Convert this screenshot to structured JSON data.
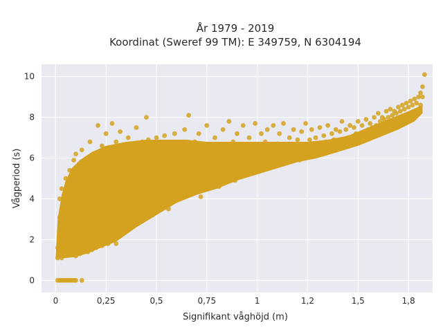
{
  "chart_data": {
    "type": "scatter",
    "title_line1": "År 1979 - 2019",
    "title_line2": "Koordinat (Sweref 99 TM): E 349759, N 6304194",
    "xlabel": "Signifikant våghöjd (m)",
    "ylabel": "Vågperiod (s)",
    "xlim": [
      -0.07,
      1.87
    ],
    "ylim": [
      -0.6,
      10.6
    ],
    "x_ticks": [
      {
        "value": 0,
        "label": "0"
      },
      {
        "value": 0.25,
        "label": "0,25"
      },
      {
        "value": 0.5,
        "label": "0,5"
      },
      {
        "value": 0.75,
        "label": "0,75"
      },
      {
        "value": 1.0,
        "label": "1"
      },
      {
        "value": 1.25,
        "label": "1,2"
      },
      {
        "value": 1.5,
        "label": "1,5"
      },
      {
        "value": 1.75,
        "label": "1,8"
      }
    ],
    "y_ticks": [
      {
        "value": 0,
        "label": "0"
      },
      {
        "value": 2,
        "label": "2"
      },
      {
        "value": 4,
        "label": "4"
      },
      {
        "value": 6,
        "label": "6"
      },
      {
        "value": 8,
        "label": "8"
      },
      {
        "value": 10,
        "label": "10"
      }
    ],
    "grid": true,
    "marker_color": "#d4a21f",
    "plot_bg": "#e9e9f1",
    "series": [
      {
        "points": [
          [
            0.01,
            0
          ],
          [
            0.02,
            0
          ],
          [
            0.03,
            0
          ],
          [
            0.04,
            0
          ],
          [
            0.05,
            0
          ],
          [
            0.06,
            0
          ],
          [
            0.07,
            0
          ],
          [
            0.08,
            0
          ],
          [
            0.09,
            0
          ],
          [
            0.1,
            0
          ],
          [
            0.13,
            0
          ],
          [
            0.01,
            1.1
          ],
          [
            0.01,
            1.6
          ],
          [
            0.02,
            1.3
          ],
          [
            0.02,
            2.2
          ],
          [
            0.02,
            3.1
          ],
          [
            0.03,
            4.5
          ],
          [
            0.02,
            4.0
          ],
          [
            0.03,
            1.1
          ],
          [
            0.04,
            2.6
          ],
          [
            0.04,
            3.6
          ],
          [
            0.05,
            5.0
          ],
          [
            0.05,
            1.2
          ],
          [
            0.06,
            1.8
          ],
          [
            0.06,
            2.9
          ],
          [
            0.06,
            4.1
          ],
          [
            0.07,
            5.4
          ],
          [
            0.08,
            1.3
          ],
          [
            0.08,
            2.1
          ],
          [
            0.08,
            3.3
          ],
          [
            0.09,
            4.6
          ],
          [
            0.09,
            5.9
          ],
          [
            0.1,
            1.2
          ],
          [
            0.1,
            1.9
          ],
          [
            0.1,
            3.0
          ],
          [
            0.1,
            6.2
          ],
          [
            0.11,
            4.2
          ],
          [
            0.11,
            5.2
          ],
          [
            0.12,
            1.3
          ],
          [
            0.12,
            2.5
          ],
          [
            0.12,
            3.8
          ],
          [
            0.13,
            5.6
          ],
          [
            0.13,
            6.4
          ],
          [
            0.14,
            1.4
          ],
          [
            0.14,
            2.2
          ],
          [
            0.14,
            4.6
          ],
          [
            0.15,
            3.2
          ],
          [
            0.15,
            5.9
          ],
          [
            0.16,
            1.4
          ],
          [
            0.16,
            2.8
          ],
          [
            0.16,
            4.0
          ],
          [
            0.17,
            6.8
          ],
          [
            0.17,
            5.1
          ],
          [
            0.18,
            1.5
          ],
          [
            0.18,
            3.4
          ],
          [
            0.19,
            4.4
          ],
          [
            0.19,
            6.1
          ],
          [
            0.2,
            1.6
          ],
          [
            0.2,
            2.6
          ],
          [
            0.21,
            7.6
          ],
          [
            0.21,
            5.4
          ],
          [
            0.22,
            3.0
          ],
          [
            0.22,
            4.0
          ],
          [
            0.23,
            1.7
          ],
          [
            0.23,
            6.6
          ],
          [
            0.24,
            4.8
          ],
          [
            0.24,
            2.4
          ],
          [
            0.25,
            7.2
          ],
          [
            0.25,
            3.6
          ],
          [
            0.26,
            5.6
          ],
          [
            0.26,
            1.8
          ],
          [
            0.27,
            6.2
          ],
          [
            0.27,
            4.2
          ],
          [
            0.28,
            7.7
          ],
          [
            0.28,
            2.6
          ],
          [
            0.29,
            5.0
          ],
          [
            0.29,
            3.2
          ],
          [
            0.3,
            6.8
          ],
          [
            0.3,
            1.8
          ],
          [
            0.31,
            4.4
          ],
          [
            0.32,
            7.3
          ],
          [
            0.32,
            5.9
          ],
          [
            0.33,
            3.4
          ],
          [
            0.34,
            6.4
          ],
          [
            0.34,
            2.6
          ],
          [
            0.35,
            4.6
          ],
          [
            0.36,
            7.0
          ],
          [
            0.36,
            5.4
          ],
          [
            0.37,
            3.8
          ],
          [
            0.38,
            6.0
          ],
          [
            0.38,
            2.9
          ],
          [
            0.39,
            4.9
          ],
          [
            0.4,
            7.5
          ],
          [
            0.4,
            6.4
          ],
          [
            0.41,
            3.6
          ],
          [
            0.42,
            5.2
          ],
          [
            0.43,
            6.8
          ],
          [
            0.43,
            4.2
          ],
          [
            0.44,
            3.3
          ],
          [
            0.45,
            8.0
          ],
          [
            0.45,
            5.6
          ],
          [
            0.46,
            6.9
          ],
          [
            0.47,
            4.6
          ],
          [
            0.48,
            3.2
          ],
          [
            0.48,
            6.2
          ],
          [
            0.49,
            5.0
          ],
          [
            0.5,
            7.0
          ],
          [
            0.5,
            4.0
          ],
          [
            0.51,
            5.8
          ],
          [
            0.52,
            6.6
          ],
          [
            0.53,
            4.5
          ],
          [
            0.54,
            7.1
          ],
          [
            0.55,
            5.2
          ],
          [
            0.56,
            3.5
          ],
          [
            0.57,
            6.2
          ],
          [
            0.58,
            4.8
          ],
          [
            0.59,
            7.2
          ],
          [
            0.6,
            5.6
          ],
          [
            0.61,
            4.2
          ],
          [
            0.62,
            6.6
          ],
          [
            0.63,
            5.1
          ],
          [
            0.64,
            7.4
          ],
          [
            0.65,
            4.8
          ],
          [
            0.66,
            8.1
          ],
          [
            0.67,
            5.9
          ],
          [
            0.68,
            4.4
          ],
          [
            0.69,
            6.8
          ],
          [
            0.7,
            5.4
          ],
          [
            0.71,
            7.2
          ],
          [
            0.72,
            4.1
          ],
          [
            0.73,
            6.2
          ],
          [
            0.74,
            5.6
          ],
          [
            0.75,
            7.6
          ],
          [
            0.76,
            4.8
          ],
          [
            0.77,
            6.4
          ],
          [
            0.78,
            5.2
          ],
          [
            0.79,
            7.0
          ],
          [
            0.8,
            5.8
          ],
          [
            0.81,
            4.6
          ],
          [
            0.82,
            6.6
          ],
          [
            0.83,
            7.4
          ],
          [
            0.84,
            5.0
          ],
          [
            0.85,
            6.2
          ],
          [
            0.86,
            7.8
          ],
          [
            0.87,
            5.4
          ],
          [
            0.88,
            6.8
          ],
          [
            0.89,
            4.9
          ],
          [
            0.9,
            7.2
          ],
          [
            0.91,
            5.8
          ],
          [
            0.92,
            6.4
          ],
          [
            0.93,
            7.6
          ],
          [
            0.94,
            5.2
          ],
          [
            0.95,
            6.0
          ],
          [
            0.96,
            7.0
          ],
          [
            0.97,
            5.6
          ],
          [
            0.98,
            6.6
          ],
          [
            0.99,
            7.7
          ],
          [
            1.0,
            5.4
          ],
          [
            1.01,
            6.2
          ],
          [
            1.02,
            7.2
          ],
          [
            1.03,
            5.8
          ],
          [
            1.04,
            6.8
          ],
          [
            1.05,
            7.4
          ],
          [
            1.06,
            5.6
          ],
          [
            1.07,
            6.4
          ],
          [
            1.08,
            7.6
          ],
          [
            1.09,
            5.9
          ],
          [
            1.1,
            6.7
          ],
          [
            1.11,
            7.2
          ],
          [
            1.12,
            6.0
          ],
          [
            1.13,
            7.7
          ],
          [
            1.14,
            6.4
          ],
          [
            1.15,
            5.8
          ],
          [
            1.16,
            7.0
          ],
          [
            1.17,
            6.6
          ],
          [
            1.18,
            7.4
          ],
          [
            1.19,
            6.1
          ],
          [
            1.2,
            6.9
          ],
          [
            1.21,
            5.9
          ],
          [
            1.22,
            7.3
          ],
          [
            1.23,
            6.5
          ],
          [
            1.24,
            7.7
          ],
          [
            1.25,
            6.2
          ],
          [
            1.26,
            6.9
          ],
          [
            1.27,
            7.4
          ],
          [
            1.28,
            6.3
          ],
          [
            1.29,
            7.0
          ],
          [
            1.3,
            6.6
          ],
          [
            1.31,
            7.5
          ],
          [
            1.32,
            6.4
          ],
          [
            1.33,
            7.1
          ],
          [
            1.34,
            6.8
          ],
          [
            1.35,
            7.6
          ],
          [
            1.36,
            6.5
          ],
          [
            1.37,
            7.2
          ],
          [
            1.38,
            6.9
          ],
          [
            1.39,
            7.4
          ],
          [
            1.4,
            6.6
          ],
          [
            1.41,
            7.3
          ],
          [
            1.42,
            7.8
          ],
          [
            1.43,
            6.8
          ],
          [
            1.44,
            7.4
          ],
          [
            1.45,
            7.0
          ],
          [
            1.46,
            7.6
          ],
          [
            1.47,
            6.9
          ],
          [
            1.48,
            7.5
          ],
          [
            1.49,
            7.2
          ],
          [
            1.5,
            7.8
          ],
          [
            1.51,
            7.1
          ],
          [
            1.52,
            7.6
          ],
          [
            1.53,
            7.3
          ],
          [
            1.54,
            7.9
          ],
          [
            1.55,
            7.4
          ],
          [
            1.56,
            7.7
          ],
          [
            1.57,
            7.5
          ],
          [
            1.58,
            8.0
          ],
          [
            1.59,
            7.6
          ],
          [
            1.6,
            8.2
          ],
          [
            1.61,
            7.8
          ],
          [
            1.62,
            8.0
          ],
          [
            1.63,
            7.9
          ],
          [
            1.64,
            8.3
          ],
          [
            1.65,
            8.0
          ],
          [
            1.66,
            8.4
          ],
          [
            1.67,
            8.1
          ],
          [
            1.68,
            8.3
          ],
          [
            1.69,
            8.2
          ],
          [
            1.7,
            8.5
          ],
          [
            1.71,
            8.3
          ],
          [
            1.72,
            8.6
          ],
          [
            1.73,
            8.4
          ],
          [
            1.74,
            8.7
          ],
          [
            1.75,
            8.5
          ],
          [
            1.76,
            8.8
          ],
          [
            1.77,
            8.6
          ],
          [
            1.78,
            8.9
          ],
          [
            1.79,
            8.7
          ],
          [
            1.8,
            9.0
          ],
          [
            1.81,
            9.2
          ],
          [
            1.82,
            9.5
          ],
          [
            1.83,
            10.1
          ],
          [
            1.82,
            9.0
          ],
          [
            1.81,
            8.6
          ]
        ]
      }
    ]
  }
}
